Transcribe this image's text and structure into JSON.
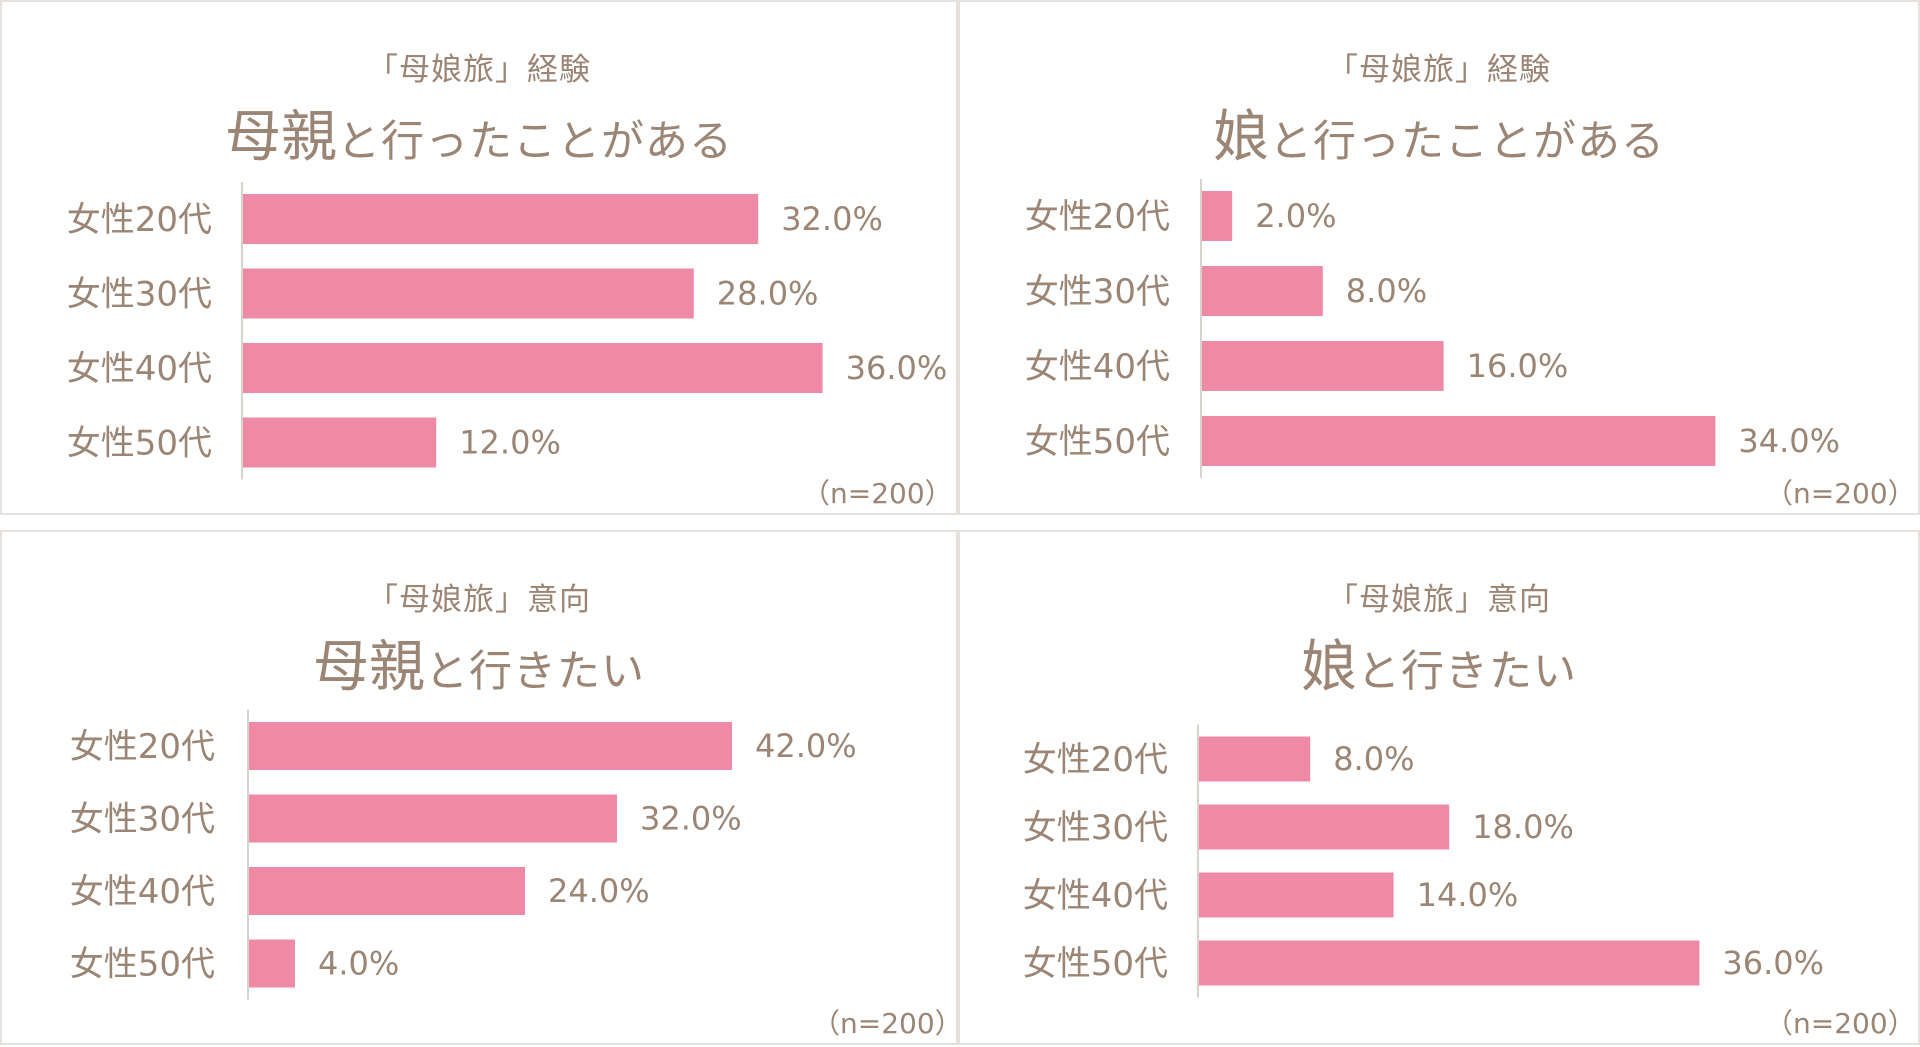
{
  "colors": {
    "bar": "#ee8aa6",
    "text": "#9b8574",
    "border": "#e6e1dc",
    "axis": "#d8d2cc"
  },
  "chart_data": [
    {
      "type": "bar",
      "orientation": "horizontal",
      "subtitle": "「母娘旅」経験",
      "title_emphasis": "母親",
      "title_rest": "と行ったことがある",
      "categories": [
        "女性20代",
        "女性30代",
        "女性40代",
        "女性50代"
      ],
      "values": [
        32.0,
        28.0,
        36.0,
        12.0
      ],
      "value_labels": [
        "32.0%",
        "28.0%",
        "36.0%",
        "12.0%"
      ],
      "note": "（n=200）"
    },
    {
      "type": "bar",
      "orientation": "horizontal",
      "subtitle": "「母娘旅」経験",
      "title_emphasis": "娘",
      "title_rest": "と行ったことがある",
      "categories": [
        "女性20代",
        "女性30代",
        "女性40代",
        "女性50代"
      ],
      "values": [
        2.0,
        8.0,
        16.0,
        34.0
      ],
      "value_labels": [
        "2.0%",
        "8.0%",
        "16.0%",
        "34.0%"
      ],
      "note": "（n=200）"
    },
    {
      "type": "bar",
      "orientation": "horizontal",
      "subtitle": "「母娘旅」意向",
      "title_emphasis": "母親",
      "title_rest": "と行きたい",
      "categories": [
        "女性20代",
        "女性30代",
        "女性40代",
        "女性50代"
      ],
      "values": [
        42.0,
        32.0,
        24.0,
        4.0
      ],
      "value_labels": [
        "42.0%",
        "32.0%",
        "24.0%",
        "4.0%"
      ],
      "note": "（n=200）"
    },
    {
      "type": "bar",
      "orientation": "horizontal",
      "subtitle": "「母娘旅」意向",
      "title_emphasis": "娘",
      "title_rest": "と行きたい",
      "categories": [
        "女性20代",
        "女性30代",
        "女性40代",
        "女性50代"
      ],
      "values": [
        8.0,
        18.0,
        14.0,
        36.0
      ],
      "value_labels": [
        "8.0%",
        "18.0%",
        "14.0%",
        "36.0%"
      ],
      "note": "（n=200）"
    }
  ]
}
